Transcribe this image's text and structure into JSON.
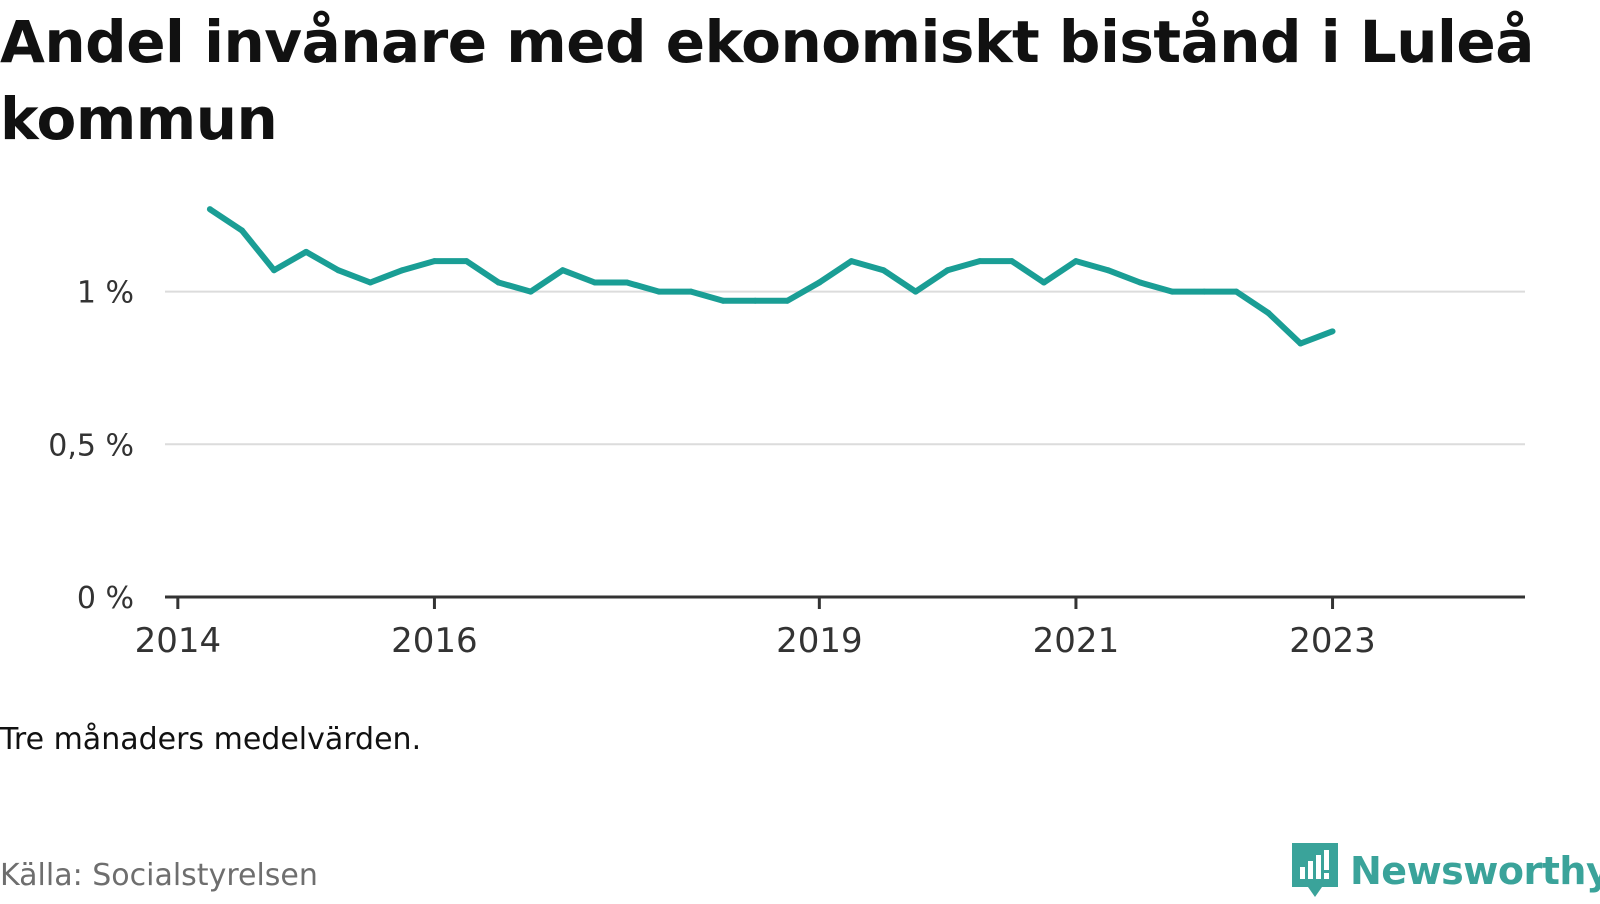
{
  "title": "Andel invånare med ekonomiskt bistånd i Luleå kommun",
  "note": "Tre månaders medelvärden.",
  "source": "Källa: Socialstyrelsen",
  "brand": {
    "name": "Newsworthy",
    "icon": "bar-chart-speech-bubble-icon",
    "color": "#3aa39a"
  },
  "colors": {
    "line": "#1a9e95",
    "grid": "#dcdcdc",
    "axis": "#333333"
  },
  "chart_data": {
    "type": "line",
    "title": "Andel invånare med ekonomiskt bistånd i Luleå kommun",
    "xlabel": "",
    "ylabel": "",
    "y_ticks": [
      0,
      0.5,
      1
    ],
    "y_tick_labels": [
      "0 %",
      "0,5 %",
      "1 %"
    ],
    "x_ticks": [
      2014,
      2016,
      2019,
      2021,
      2023
    ],
    "x_tick_labels": [
      "2014",
      "2016",
      "2019",
      "2021",
      "2023"
    ],
    "xlim": [
      2013.9,
      2024.5
    ],
    "ylim": [
      0,
      1.3
    ],
    "grid": true,
    "series": [
      {
        "values": [
          {
            "x": "2014-04",
            "y": 1.27
          },
          {
            "x": "2014-07",
            "y": 1.2
          },
          {
            "x": "2014-10",
            "y": 1.07
          },
          {
            "x": "2015-01",
            "y": 1.13
          },
          {
            "x": "2015-04",
            "y": 1.07
          },
          {
            "x": "2015-07",
            "y": 1.03
          },
          {
            "x": "2015-10",
            "y": 1.07
          },
          {
            "x": "2016-01",
            "y": 1.1
          },
          {
            "x": "2016-04",
            "y": 1.1
          },
          {
            "x": "2016-07",
            "y": 1.03
          },
          {
            "x": "2016-10",
            "y": 1.0
          },
          {
            "x": "2017-01",
            "y": 1.07
          },
          {
            "x": "2017-04",
            "y": 1.03
          },
          {
            "x": "2017-07",
            "y": 1.03
          },
          {
            "x": "2017-10",
            "y": 1.0
          },
          {
            "x": "2018-01",
            "y": 1.0
          },
          {
            "x": "2018-04",
            "y": 0.97
          },
          {
            "x": "2018-07",
            "y": 0.97
          },
          {
            "x": "2018-10",
            "y": 0.97
          },
          {
            "x": "2019-01",
            "y": 1.03
          },
          {
            "x": "2019-04",
            "y": 1.1
          },
          {
            "x": "2019-07",
            "y": 1.07
          },
          {
            "x": "2019-10",
            "y": 1.0
          },
          {
            "x": "2020-01",
            "y": 1.07
          },
          {
            "x": "2020-04",
            "y": 1.1
          },
          {
            "x": "2020-07",
            "y": 1.1
          },
          {
            "x": "2020-10",
            "y": 1.03
          },
          {
            "x": "2021-01",
            "y": 1.1
          },
          {
            "x": "2021-04",
            "y": 1.07
          },
          {
            "x": "2021-07",
            "y": 1.03
          },
          {
            "x": "2021-10",
            "y": 1.0
          },
          {
            "x": "2022-01",
            "y": 1.0
          },
          {
            "x": "2022-04",
            "y": 1.0
          },
          {
            "x": "2022-07",
            "y": 0.93
          },
          {
            "x": "2022-10",
            "y": 0.83
          },
          {
            "x": "2023-01",
            "y": 0.87
          }
        ]
      }
    ]
  }
}
